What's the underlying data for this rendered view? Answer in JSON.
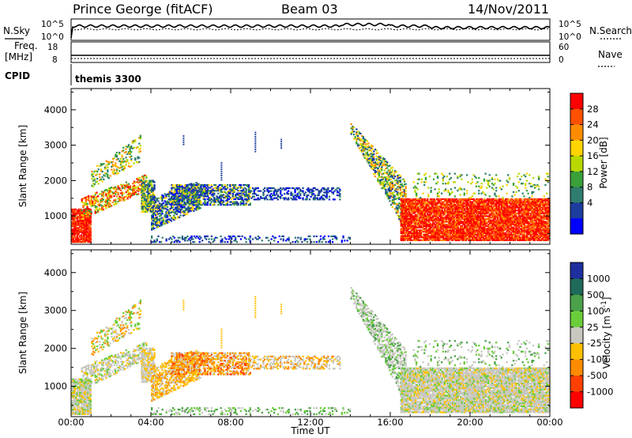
{
  "header": {
    "station": "Prince George (fitACF)",
    "beam": "Beam 03",
    "date": "14/Nov/2011",
    "cpid_label": "CPID",
    "cpid_value": "themis 3300"
  },
  "top_strips": {
    "left_label_top": "N.Sky",
    "right_label_top": "N.Search",
    "left_ticks_top": [
      "10^5",
      "10^0"
    ],
    "right_ticks_top": [
      "10^5",
      "10^0"
    ],
    "left_label_mid_a": "Freq.",
    "left_label_mid_b": "[MHz]",
    "right_label_mid": "Nave",
    "left_ticks_mid": [
      "18",
      "8"
    ],
    "right_ticks_mid": [
      "60",
      "0"
    ]
  },
  "power_colorbar": {
    "title": "Power [dB]",
    "ticks": [
      "28",
      "24",
      "20",
      "16",
      "12",
      "8",
      "4"
    ],
    "colors": [
      "#ff0000",
      "#ff5000",
      "#ff8c00",
      "#ffd400",
      "#b8d800",
      "#3aa03a",
      "#2e7d6e",
      "#1c3d9e",
      "#0000ff"
    ]
  },
  "velocity_colorbar": {
    "title": "Velocity [m s^-1]",
    "ticks": [
      "1000",
      "500",
      "100",
      "25",
      "-25",
      "-100",
      "-500",
      "-1000"
    ],
    "colors": [
      "#1e2f9e",
      "#1f6b5a",
      "#4aa14a",
      "#6acd3a",
      "#c8c8c0",
      "#ffc000",
      "#ff8c00",
      "#ff4000",
      "#ff0000"
    ]
  },
  "chart_data": [
    {
      "type": "heatmap",
      "title": "Power",
      "xlabel": "Time UT",
      "ylabel": "Slant Range [km]",
      "x_ticks": [
        "00:00",
        "04:00",
        "08:00",
        "12:00",
        "16:00",
        "20:00",
        "00:00"
      ],
      "y_ticks": [
        "1000",
        "2000",
        "3000",
        "4000"
      ],
      "xlim": [
        0,
        24
      ],
      "ylim": [
        200,
        4600
      ],
      "colorbar": "Power [dB]"
    },
    {
      "type": "heatmap",
      "title": "Velocity",
      "xlabel": "Time UT",
      "ylabel": "Slant Range [km]",
      "x_ticks": [
        "00:00",
        "04:00",
        "08:00",
        "12:00",
        "16:00",
        "20:00",
        "00:00"
      ],
      "y_ticks": [
        "1000",
        "2000",
        "3000",
        "4000"
      ],
      "xlim": [
        0,
        24
      ],
      "ylim": [
        200,
        4600
      ],
      "colorbar": "Velocity [m s^-1]"
    }
  ]
}
